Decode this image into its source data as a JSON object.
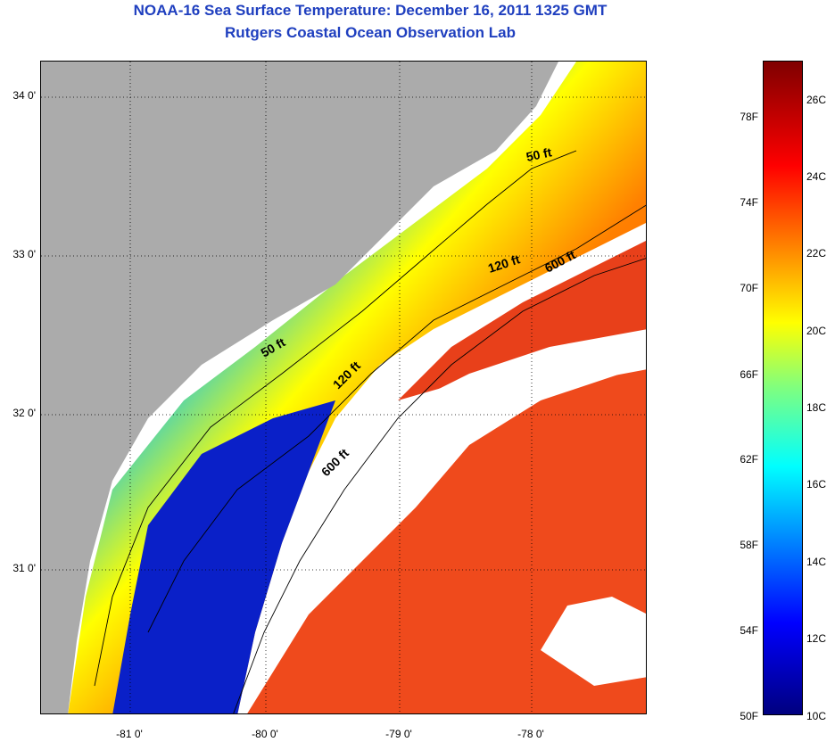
{
  "header": {
    "title": "NOAA-16 Sea Surface Temperature:  December 16, 2011 1325 GMT",
    "subtitle": "Rutgers Coastal Ocean Observation Lab"
  },
  "map": {
    "lat_labels": [
      "34 0'",
      "33 0'",
      "32 0'",
      "31 0'"
    ],
    "lon_labels": [
      "-81 0'",
      "-80 0'",
      "-79 0'",
      "-78 0'"
    ],
    "isobath_labels": [
      "50 ft",
      "50 ft",
      "120 ft",
      "600 ft",
      "120 ft",
      "600 ft"
    ],
    "colors": {
      "land": "#ababab",
      "cloud": "#ffffff",
      "grid": "#000000"
    }
  },
  "colorbar": {
    "fahrenheit_labels": [
      "78F",
      "74F",
      "70F",
      "66F",
      "62F",
      "58F",
      "54F",
      "50F"
    ],
    "celsius_labels": [
      "26C",
      "24C",
      "22C",
      "20C",
      "18C",
      "16C",
      "14C",
      "12C",
      "10C"
    ]
  }
}
